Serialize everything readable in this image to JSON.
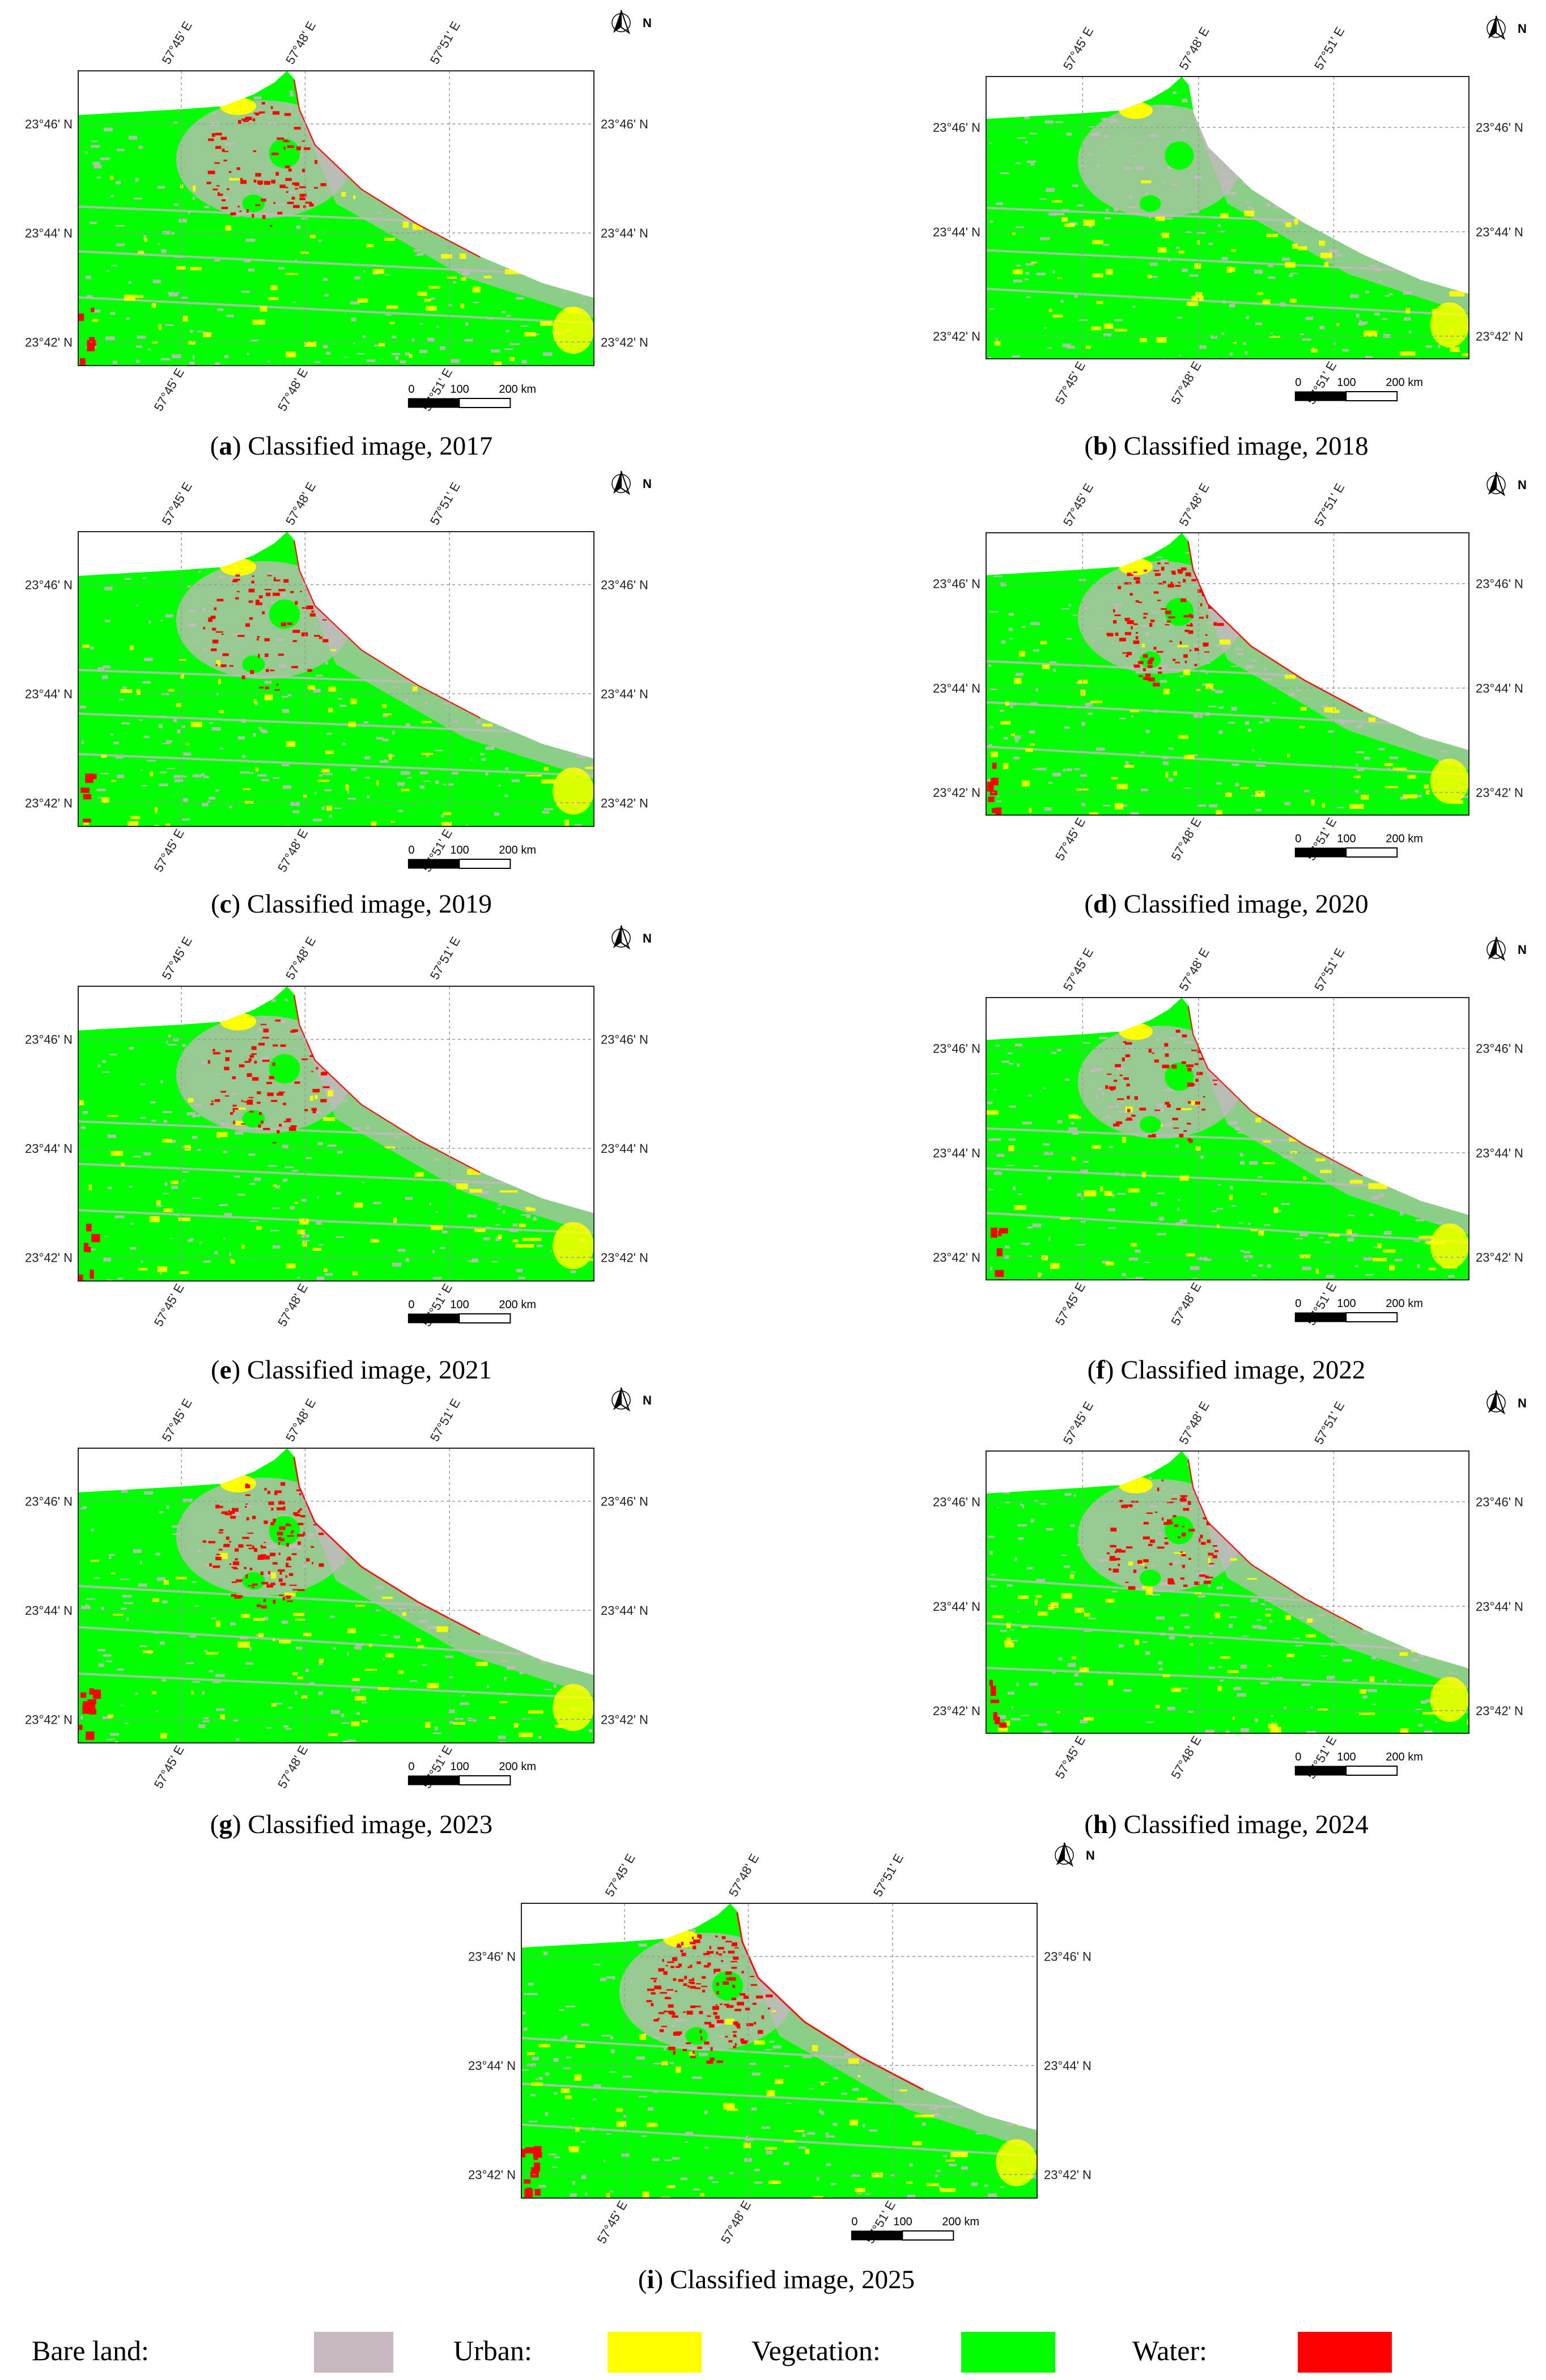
{
  "classes": [
    {
      "name": "Bare land",
      "label": "Bare land:",
      "color": "#c8b8c2"
    },
    {
      "name": "Urban",
      "label": "Urban:",
      "color": "#ffff00"
    },
    {
      "name": "Vegetation",
      "label": "Vegetation:",
      "color": "#00ff00"
    },
    {
      "name": "Water",
      "label": "Water:",
      "color": "#ff0000"
    }
  ],
  "map_labels": {
    "lon_ticks": [
      "57°45' E",
      "57°48' E",
      "57°51' E"
    ],
    "lat_ticks": [
      "23°46' N",
      "23°44' N",
      "23°42' N"
    ],
    "north": "N",
    "scale_ticks": [
      "0",
      "100",
      "200 km"
    ]
  },
  "panels": [
    {
      "id": "a",
      "letter": "a",
      "title": "Classified image, 2017",
      "year": 2017,
      "water_level": 0.55
    },
    {
      "id": "b",
      "letter": "b",
      "title": "Classified image, 2018",
      "year": 2018,
      "water_level": 0.0
    },
    {
      "id": "c",
      "letter": "c",
      "title": "Classified image, 2019",
      "year": 2019,
      "water_level": 0.45
    },
    {
      "id": "d",
      "letter": "d",
      "title": "Classified image, 2020",
      "year": 2020,
      "water_level": 0.7
    },
    {
      "id": "e",
      "letter": "e",
      "title": "Classified image, 2021",
      "year": 2021,
      "water_level": 0.5
    },
    {
      "id": "f",
      "letter": "f",
      "title": "Classified image, 2022",
      "year": 2022,
      "water_level": 0.4
    },
    {
      "id": "g",
      "letter": "g",
      "title": "Classified image, 2023",
      "year": 2023,
      "water_level": 0.85
    },
    {
      "id": "h",
      "letter": "h",
      "title": "Classified image, 2024",
      "year": 2024,
      "water_level": 0.5
    },
    {
      "id": "i",
      "letter": "i",
      "title": "Classified image, 2025",
      "year": 2025,
      "water_level": 1.0
    }
  ]
}
